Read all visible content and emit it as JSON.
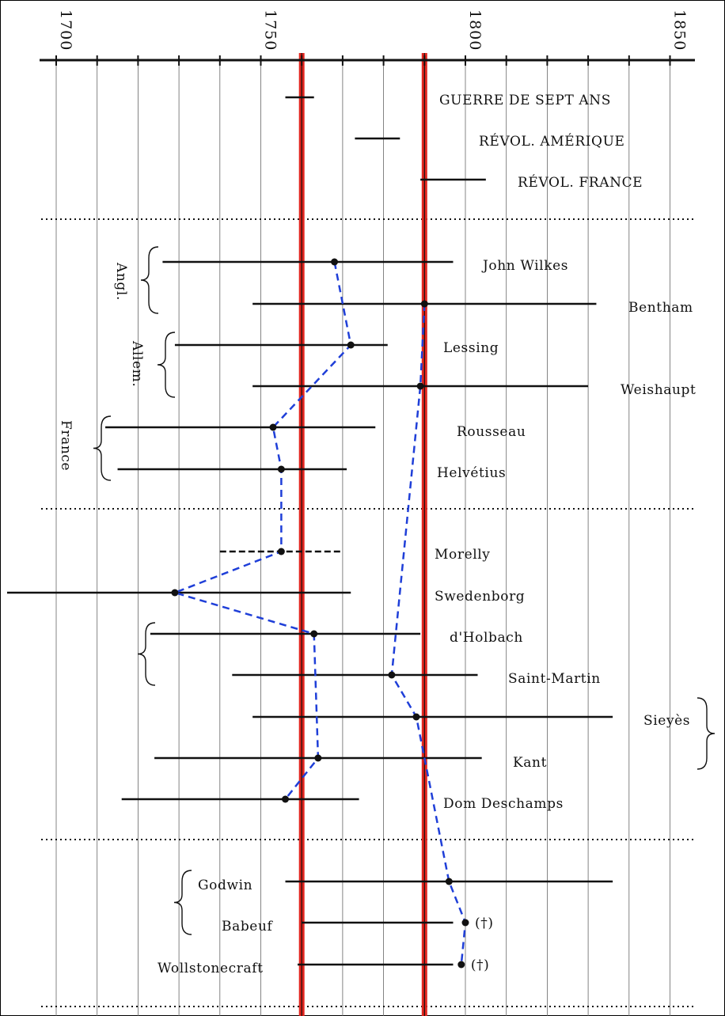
{
  "chart_data": {
    "type": "timeline",
    "axis": {
      "x_range": [
        1696,
        1856
      ],
      "major_ticks": [
        1700,
        1750,
        1800,
        1850
      ],
      "minor_step": 10,
      "grid": true
    },
    "highlight_years": [
      1760,
      1790
    ],
    "events": [
      {
        "label": "GUERRE DE SEPT ANS",
        "start": 1756,
        "end": 1763
      },
      {
        "label": "RÉVOL. AMÉRIQUE",
        "start": 1773,
        "end": 1784
      },
      {
        "label": "RÉVOL. FRANCE",
        "start": 1789,
        "end": 1805
      }
    ],
    "persons": [
      {
        "name": "John Wilkes",
        "start": 1726,
        "end": 1797,
        "point": 1768
      },
      {
        "name": "Bentham",
        "start": 1748,
        "end": 1832,
        "point": 1790
      },
      {
        "name": "Lessing",
        "start": 1729,
        "end": 1781,
        "point": 1772
      },
      {
        "name": "Weishaupt",
        "start": 1748,
        "end": 1830,
        "point": 1789
      },
      {
        "name": "Rousseau",
        "start": 1712,
        "end": 1778,
        "point": 1753
      },
      {
        "name": "Helvétius",
        "start": 1715,
        "end": 1771,
        "point": 1755
      },
      {
        "name": "Morelly",
        "start": 1740,
        "end": 1770,
        "point": 1755,
        "dashed": true
      },
      {
        "name": "Swedenborg",
        "start": 1688,
        "end": 1772,
        "point": 1729
      },
      {
        "name": "d'Holbach",
        "start": 1723,
        "end": 1789,
        "point": 1763
      },
      {
        "name": "Saint-Martin",
        "start": 1743,
        "end": 1803,
        "point": 1782
      },
      {
        "name": "Sieyès",
        "start": 1748,
        "end": 1836,
        "point": 1788
      },
      {
        "name": "Kant",
        "start": 1724,
        "end": 1804,
        "point": 1764
      },
      {
        "name": "Dom Deschamps",
        "start": 1716,
        "end": 1774,
        "point": 1756
      },
      {
        "name": "Godwin",
        "start": 1756,
        "end": 1836,
        "point": 1796
      },
      {
        "name": "Babeuf",
        "start": 1760,
        "end": 1797,
        "point": 1800,
        "suffix": "(†)"
      },
      {
        "name": "Wollstonecraft",
        "start": 1759,
        "end": 1797,
        "point": 1799,
        "suffix": "(†)"
      }
    ],
    "group_labels": [
      "Angl.",
      "Allem.",
      "France"
    ],
    "colors": {
      "highlight": "#e3261f",
      "connector": "#1f3fd8",
      "line": "#111111"
    }
  }
}
